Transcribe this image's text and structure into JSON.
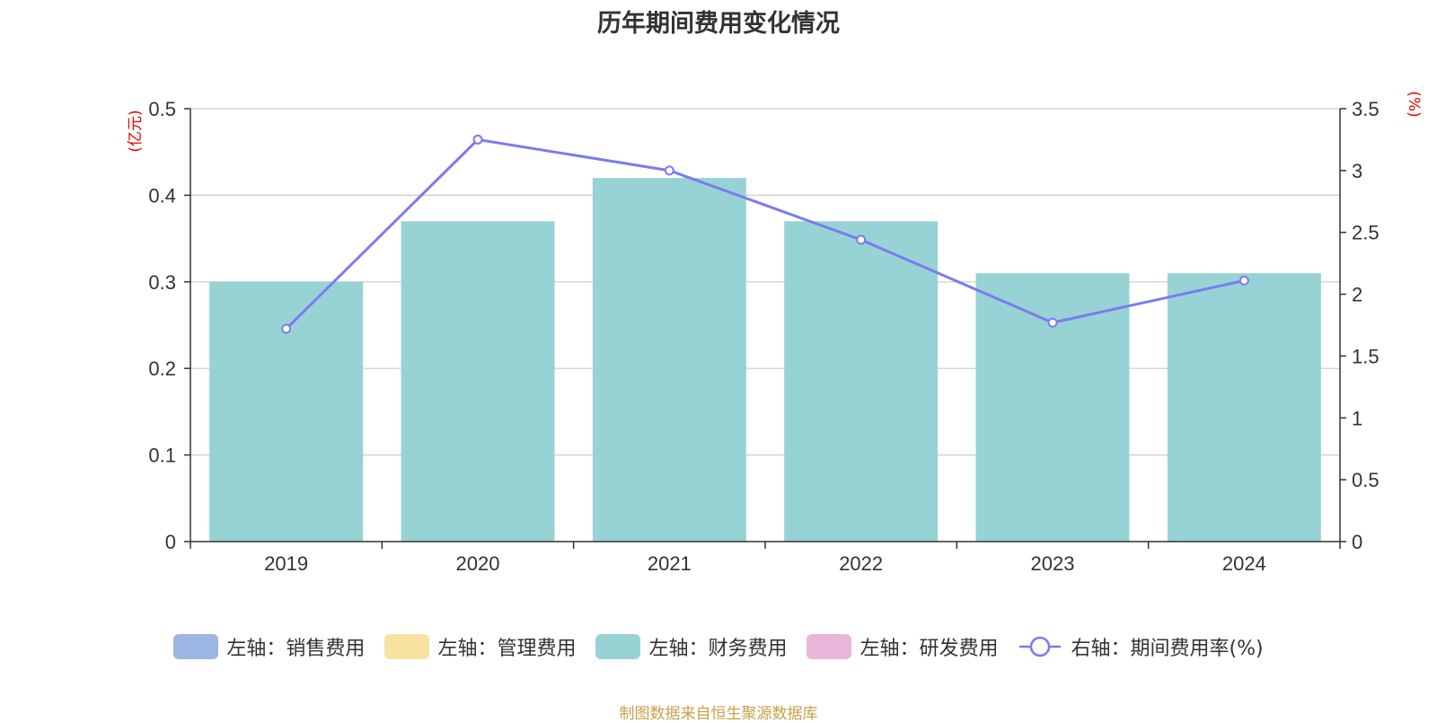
{
  "title": "历年期间费用变化情况",
  "source_note": "制图数据来自恒生聚源数据库",
  "colors": {
    "sales": "#9bb6e3",
    "admin": "#f8e2a0",
    "finance": "#97d3d5",
    "rnd": "#e8b6d9",
    "rate": "#7b7bef",
    "axis_unit": "#e60000",
    "grid": "#cccccc",
    "axis": "#333333"
  },
  "legend": [
    {
      "label": "左轴：销售费用",
      "kind": "bar",
      "color_key": "sales"
    },
    {
      "label": "左轴：管理费用",
      "kind": "bar",
      "color_key": "admin"
    },
    {
      "label": "左轴：财务费用",
      "kind": "bar",
      "color_key": "finance"
    },
    {
      "label": "左轴：研发费用",
      "kind": "bar",
      "color_key": "rnd"
    },
    {
      "label": "右轴：期间费用率(%)",
      "kind": "line",
      "color_key": "rate"
    }
  ],
  "chart_data": {
    "type": "bar",
    "title": "历年期间费用变化情况",
    "categories": [
      "2019",
      "2020",
      "2021",
      "2022",
      "2023",
      "2024"
    ],
    "series": [
      {
        "name": "左轴：财务费用",
        "type": "bar",
        "axis": "left",
        "values": [
          0.3,
          0.37,
          0.42,
          0.37,
          0.31,
          0.31
        ]
      },
      {
        "name": "右轴：期间费用率(%)",
        "type": "line",
        "axis": "right",
        "values": [
          1.72,
          3.25,
          3.0,
          2.44,
          1.77,
          2.11
        ]
      }
    ],
    "ylabel_left": "(亿元)",
    "ylabel_right": "(%)",
    "ylim_left": [
      0,
      0.5
    ],
    "ylim_right": [
      0,
      3.5
    ],
    "yticks_left": [
      "0",
      "0.1",
      "0.2",
      "0.3",
      "0.4",
      "0.5"
    ],
    "yticks_right": [
      "0",
      "0.5",
      "1",
      "1.5",
      "2",
      "2.5",
      "3",
      "3.5"
    ],
    "grid": true,
    "legend_position": "bottom"
  }
}
